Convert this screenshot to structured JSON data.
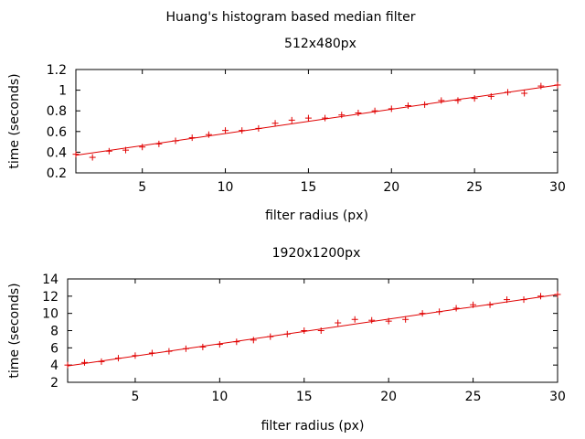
{
  "figure_title": "Huang's histogram based median filter",
  "chart_data": [
    {
      "type": "scatter",
      "title": "512x480px",
      "xlabel": "filter radius (px)",
      "ylabel": "time (seconds)",
      "xlim": [
        1,
        30
      ],
      "ylim": [
        0.2,
        1.2
      ],
      "xticks": [
        5,
        10,
        15,
        20,
        25,
        30
      ],
      "yticks": [
        0.2,
        0.4,
        0.6,
        0.8,
        1,
        1.2
      ],
      "grid": false,
      "legend": "none",
      "marker_color": "#e00000",
      "fit_line": {
        "x": [
          1,
          30
        ],
        "y": [
          0.37,
          1.05
        ]
      },
      "series": [
        {
          "marker": "plus",
          "x": [
            1,
            2,
            3,
            4,
            5,
            6,
            7,
            8,
            9,
            10,
            11,
            12,
            13,
            14,
            15,
            16,
            17,
            18,
            19,
            20,
            21,
            22,
            23,
            24,
            25,
            26,
            27,
            28,
            29,
            30
          ],
          "values": [
            0.38,
            0.35,
            0.41,
            0.42,
            0.45,
            0.48,
            0.51,
            0.54,
            0.57,
            0.61,
            0.61,
            0.63,
            0.68,
            0.71,
            0.73,
            0.73,
            0.76,
            0.78,
            0.8,
            0.82,
            0.85,
            0.86,
            0.9,
            0.9,
            0.92,
            0.94,
            0.98,
            0.97,
            1.04,
            1.05
          ]
        }
      ]
    },
    {
      "type": "scatter",
      "title": "1920x1200px",
      "xlabel": "filter radius (px)",
      "ylabel": "time (seconds)",
      "xlim": [
        1,
        30
      ],
      "ylim": [
        2,
        14
      ],
      "xticks": [
        5,
        10,
        15,
        20,
        25,
        30
      ],
      "yticks": [
        2,
        4,
        6,
        8,
        10,
        12,
        14
      ],
      "grid": false,
      "legend": "none",
      "marker_color": "#e00000",
      "fit_line": {
        "x": [
          1,
          30
        ],
        "y": [
          3.9,
          12.2
        ]
      },
      "series": [
        {
          "marker": "plus",
          "x": [
            1,
            2,
            3,
            4,
            5,
            6,
            7,
            8,
            9,
            10,
            11,
            12,
            13,
            14,
            15,
            16,
            17,
            18,
            19,
            20,
            21,
            22,
            23,
            24,
            25,
            26,
            27,
            28,
            29,
            30
          ],
          "values": [
            4.0,
            4.3,
            4.4,
            4.8,
            5.1,
            5.4,
            5.6,
            5.9,
            6.1,
            6.4,
            6.7,
            6.9,
            7.3,
            7.6,
            8.0,
            8.0,
            8.9,
            9.3,
            9.2,
            9.1,
            9.3,
            10.0,
            10.2,
            10.6,
            11.0,
            11.0,
            11.6,
            11.6,
            12.0,
            12.2
          ]
        }
      ]
    }
  ]
}
